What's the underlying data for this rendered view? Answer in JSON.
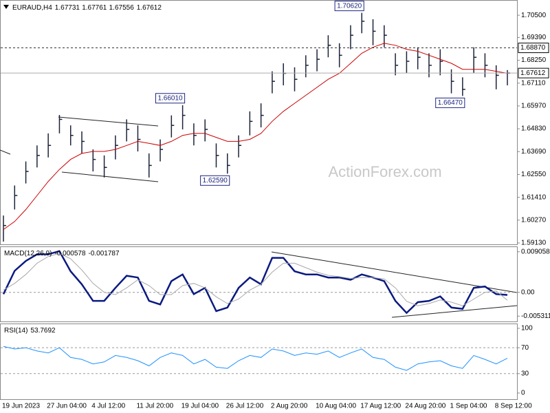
{
  "chart_data": [
    {
      "type": "ohlc",
      "symbol": "EURAUD,H4",
      "quote": [
        1.67731,
        1.67761,
        1.67556,
        1.67612
      ],
      "watermark": "ActionForex.com",
      "categories": [
        "19 Jun 2023",
        null,
        null,
        null,
        "27 Jun 04:00",
        null,
        null,
        null,
        "4 Jul 12:00",
        null,
        null,
        null,
        "11 Jul 20:00",
        null,
        null,
        null,
        "19 Jul 04:00",
        null,
        null,
        null,
        "26 Jul 12:00",
        null,
        null,
        null,
        "2 Aug 20:00",
        null,
        null,
        null,
        "10 Aug 04:00",
        null,
        null,
        null,
        "17 Aug 12:00",
        null,
        null,
        null,
        "24 Aug 20:00",
        null,
        null,
        null,
        "1 Sep 04:00",
        null,
        null,
        null,
        "8 Sep 12:00",
        null
      ],
      "high": [
        1.605,
        1.62,
        1.632,
        1.64,
        1.646,
        1.6552,
        1.65,
        1.647,
        1.638,
        1.635,
        1.645,
        1.653,
        1.65,
        1.636,
        1.643,
        1.655,
        1.6601,
        1.651,
        1.653,
        1.641,
        1.636,
        1.645,
        1.657,
        1.661,
        1.677,
        1.681,
        1.679,
        1.685,
        1.688,
        1.695,
        1.691,
        1.7,
        1.7062,
        1.703,
        1.7,
        1.686,
        1.687,
        1.689,
        1.686,
        1.688,
        1.678,
        1.674,
        1.689,
        1.686,
        1.68,
        1.67761
      ],
      "low": [
        1.592,
        1.608,
        1.621,
        1.629,
        1.634,
        1.646,
        1.64,
        1.636,
        1.627,
        1.624,
        1.633,
        1.642,
        1.637,
        1.624,
        1.632,
        1.644,
        1.648,
        1.64,
        1.642,
        1.629,
        1.6259,
        1.634,
        1.645,
        1.649,
        1.666,
        1.67,
        1.667,
        1.674,
        1.677,
        1.684,
        1.679,
        1.688,
        1.696,
        1.69,
        1.689,
        1.675,
        1.676,
        1.678,
        1.674,
        1.675,
        1.666,
        1.6647,
        1.676,
        1.674,
        1.668,
        1.67
      ],
      "close": [
        1.6,
        1.615,
        1.627,
        1.635,
        1.64,
        1.653,
        1.645,
        1.642,
        1.633,
        1.629,
        1.64,
        1.648,
        1.643,
        1.63,
        1.638,
        1.65,
        1.655,
        1.645,
        1.648,
        1.635,
        1.63,
        1.64,
        1.652,
        1.655,
        1.672,
        1.676,
        1.673,
        1.68,
        1.683,
        1.69,
        1.685,
        1.695,
        1.702,
        1.697,
        1.695,
        1.68,
        1.682,
        1.684,
        1.68,
        1.682,
        1.672,
        1.668,
        1.684,
        1.68,
        1.675,
        1.67612
      ],
      "bar_color": "#1a2238",
      "ma": [
        1.598,
        1.602,
        1.608,
        1.615,
        1.622,
        1.628,
        1.633,
        1.636,
        1.637,
        1.637,
        1.638,
        1.64,
        1.642,
        1.641,
        1.64,
        1.642,
        1.645,
        1.646,
        1.646,
        1.644,
        1.642,
        1.642,
        1.643,
        1.646,
        1.652,
        1.657,
        1.661,
        1.665,
        1.669,
        1.673,
        1.676,
        1.681,
        1.686,
        1.689,
        1.691,
        1.69,
        1.688,
        1.687,
        1.685,
        1.683,
        1.681,
        1.678,
        1.678,
        1.678,
        1.677,
        1.676
      ],
      "ma_color": "#cc0000",
      "ylim": [
        1.5906,
        1.7126
      ],
      "yticks": [
        {
          "value": 1.705,
          "label": "1.70500"
        },
        {
          "value": 1.6939,
          "label": "1.69390"
        },
        {
          "value": 1.6825,
          "label": "1.68250"
        },
        {
          "value": 1.6711,
          "label": "1.67110"
        },
        {
          "value": 1.6597,
          "label": "1.65970"
        },
        {
          "value": 1.6483,
          "label": "1.64830"
        },
        {
          "value": 1.6369,
          "label": "1.63690"
        },
        {
          "value": 1.6255,
          "label": "1.62550"
        },
        {
          "value": 1.6141,
          "label": "1.61410"
        },
        {
          "value": 1.6027,
          "label": "1.60270"
        },
        {
          "value": 1.5913,
          "label": "1.59130"
        }
      ],
      "price_lines": [
        {
          "value": 1.6887,
          "label": "1.68870",
          "dash": true
        },
        {
          "value": 1.67612,
          "dash": false
        }
      ],
      "annotations": [
        {
          "value": 1.7062,
          "label": "1.70620"
        },
        {
          "value": 1.6601,
          "label": "1.66010"
        },
        {
          "value": 1.6259,
          "label": "1.62590"
        },
        {
          "value": 1.6647,
          "label": "1.66470"
        }
      ]
    },
    {
      "type": "line",
      "title": "MACD(12,26,9)",
      "readout": [
        -0.000578,
        -0.001787
      ],
      "series": [
        {
          "color": "#0a1a80",
          "width": 2.5,
          "values": [
            -0.0004,
            0.0048,
            0.007,
            0.0085,
            0.0085,
            0.0092,
            0.0047,
            0.0018,
            -0.0019,
            -0.0019,
            0.001,
            0.0037,
            0.0033,
            -0.0019,
            -0.0027,
            0.0025,
            0.004,
            -0.0004,
            0.001,
            -0.0042,
            -0.0034,
            0.001,
            0.0033,
            0.0018,
            0.0077,
            0.0077,
            0.0047,
            0.004,
            0.004,
            0.0033,
            0.0033,
            0.0028,
            0.004,
            0.0033,
            0.0025,
            -0.0019,
            -0.0046,
            -0.0022,
            -0.0019,
            -0.0009,
            -0.0034,
            -0.0037,
            0.001,
            0.0013,
            -0.0004,
            -0.000578
          ]
        },
        {
          "color": "#a8a8a8",
          "width": 1,
          "values": [
            0.0005,
            0.002,
            0.004,
            0.0065,
            0.008,
            0.0087,
            0.0075,
            0.005,
            0.002,
            0.0,
            -0.0005,
            0.001,
            0.0028,
            0.0015,
            -0.0005,
            -0.0005,
            0.0015,
            0.002,
            0.001,
            -0.001,
            -0.0025,
            -0.0015,
            0.0005,
            0.0018,
            0.0045,
            0.0065,
            0.0065,
            0.0055,
            0.0045,
            0.0038,
            0.0035,
            0.0031,
            0.0033,
            0.0033,
            0.003,
            0.001,
            -0.002,
            -0.003,
            -0.0025,
            -0.0017,
            -0.0022,
            -0.003,
            -0.0015,
            0.0,
            0.0003,
            -0.001787
          ]
        }
      ],
      "ylim": [
        -0.0065,
        0.01025
      ],
      "yticks": [
        0.009058,
        {
          "value": 0,
          "label": "0.00"
        },
        -0.005311
      ],
      "levels": [
        0
      ]
    },
    {
      "type": "line",
      "title": "RSI(14)",
      "readout": [
        53.7692
      ],
      "series": [
        {
          "color": "#1e90ff",
          "width": 1,
          "values": [
            72,
            68,
            70,
            65,
            62,
            70,
            55,
            52,
            45,
            48,
            58,
            55,
            50,
            42,
            55,
            62,
            58,
            45,
            52,
            40,
            38,
            50,
            58,
            55,
            68,
            65,
            58,
            62,
            60,
            65,
            55,
            62,
            68,
            55,
            52,
            40,
            35,
            45,
            48,
            50,
            42,
            38,
            58,
            52,
            45,
            53.7692
          ]
        }
      ],
      "ylim": [
        -9.6,
        107.4
      ],
      "yticks": [
        100,
        70,
        30,
        0
      ],
      "levels": [
        70,
        30
      ]
    }
  ]
}
